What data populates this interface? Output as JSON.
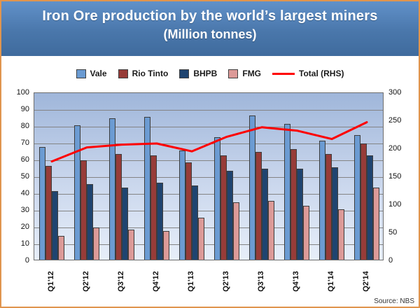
{
  "header": {
    "title": "Iron Ore production by the world’s largest miners",
    "subtitle": "(Million tonnes)"
  },
  "source": "Source: NBS",
  "chart_data": {
    "type": "bar",
    "subtype": "grouped-bars-with-line",
    "title": "Iron Ore production by the world's largest miners (Million tonnes)",
    "categories": [
      "Q1'12",
      "Q2'12",
      "Q3'12",
      "Q4'12",
      "Q1'13",
      "Q2'13",
      "Q3'13",
      "Q4'13",
      "Q1'14",
      "Q2'14"
    ],
    "series": [
      {
        "name": "Vale",
        "color": "#6b9bd2",
        "axis": "left",
        "values": [
          67,
          80,
          84,
          85,
          65,
          73,
          86,
          81,
          71,
          74
        ]
      },
      {
        "name": "Rio Tinto",
        "color": "#973c38",
        "axis": "left",
        "values": [
          56,
          59,
          63,
          62,
          58,
          62,
          64,
          66,
          63,
          69
        ]
      },
      {
        "name": "BHPB",
        "color": "#1f4470",
        "axis": "left",
        "values": [
          41,
          45,
          43,
          46,
          44,
          53,
          54,
          54,
          55,
          62
        ]
      },
      {
        "name": "FMG",
        "color": "#dc9a98",
        "axis": "left",
        "values": [
          14,
          19,
          18,
          17,
          25,
          34,
          35,
          32,
          30,
          43
        ]
      }
    ],
    "line_series": {
      "name": "Total (RHS)",
      "color": "#ff0000",
      "axis": "right",
      "values": [
        178,
        203,
        208,
        210,
        196,
        222,
        239,
        233,
        218,
        248
      ]
    },
    "left_axis": {
      "min": 0,
      "max": 100,
      "ticks": [
        100,
        90,
        80,
        70,
        60,
        50,
        40,
        30,
        20,
        10,
        0
      ]
    },
    "right_axis": {
      "min": 0,
      "max": 300,
      "ticks": [
        300,
        250,
        200,
        150,
        100,
        50,
        0
      ]
    },
    "grid": true,
    "legend_position": "top"
  }
}
